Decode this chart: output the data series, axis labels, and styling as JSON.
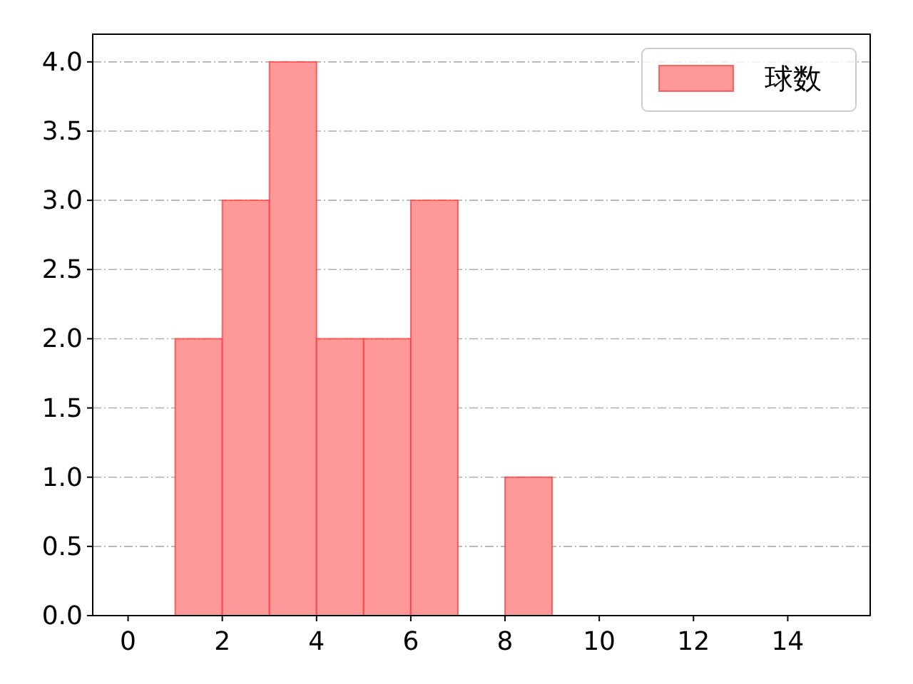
{
  "chart_data": {
    "type": "histogram",
    "bins": [
      1,
      2,
      3,
      4,
      5,
      6,
      7,
      8,
      9
    ],
    "series": [
      {
        "name": "球数",
        "color": "#ff9999",
        "values": [
          2,
          3,
          4,
          2,
          2,
          3,
          0,
          1
        ]
      }
    ],
    "xlim": [
      -0.75,
      15.75
    ],
    "xticks": [
      0,
      2,
      4,
      6,
      8,
      10,
      12,
      14
    ],
    "ylim": [
      0,
      4.2
    ],
    "yticks": [
      {
        "value": 0,
        "label": "0.0"
      },
      {
        "value": 0.5,
        "label": "0.5"
      },
      {
        "value": 1,
        "label": "1.0"
      },
      {
        "value": 1.5,
        "label": "1.5"
      },
      {
        "value": 2,
        "label": "2.0"
      },
      {
        "value": 2.5,
        "label": "2.5"
      },
      {
        "value": 3,
        "label": "3.0"
      },
      {
        "value": 3.5,
        "label": "3.5"
      },
      {
        "value": 4,
        "label": "4.0"
      }
    ],
    "grid": "y",
    "legend": "top right"
  }
}
